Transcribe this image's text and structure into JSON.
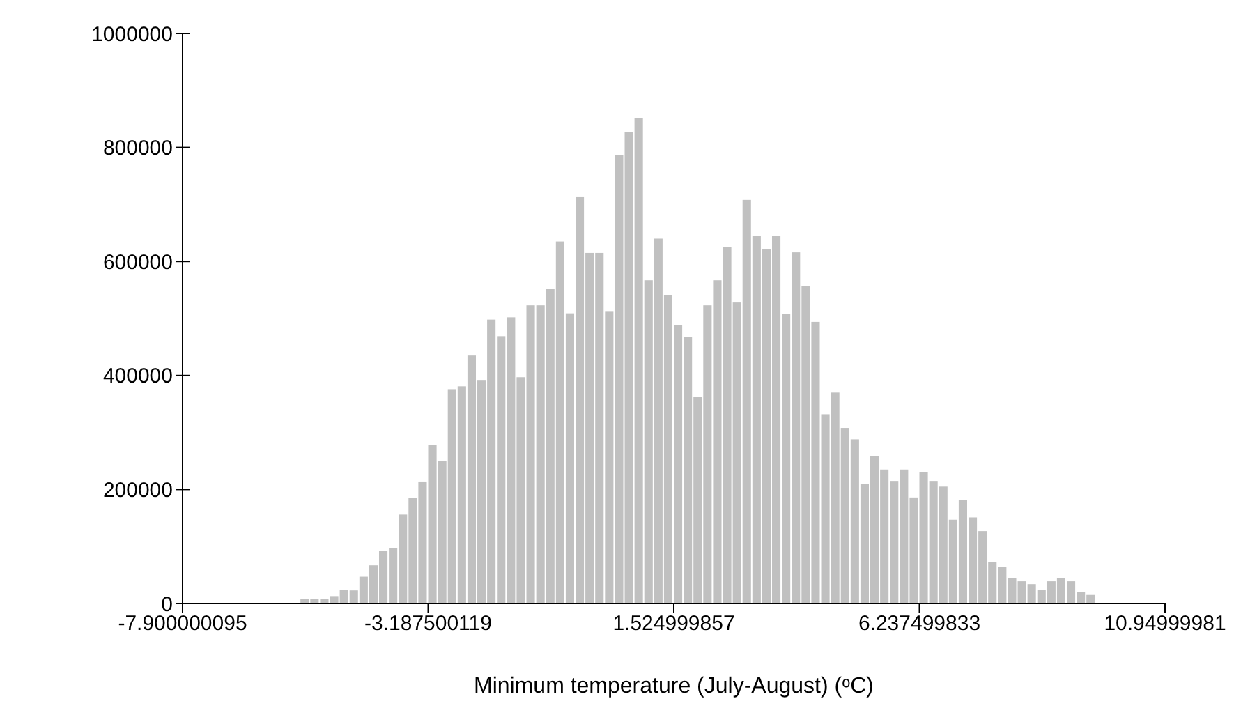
{
  "chart_data": {
    "type": "histogram",
    "xlabel": "Minimum temperature (July-August) (ᵒC)",
    "color": "#c0c0c0",
    "bins": [
      -7.900000095,
      -7.7115,
      -7.523,
      -7.3345,
      -7.146,
      -6.9575,
      -6.769,
      -6.5805,
      -6.392,
      -6.2035,
      -6.015,
      -5.8265,
      -5.638,
      -5.4495,
      -5.261,
      -5.0725,
      -4.884,
      -4.6955,
      -4.507,
      -4.3185,
      -4.13,
      -3.9415,
      -3.753,
      -3.5645,
      -3.376,
      -3.1875,
      -2.999,
      -2.8105,
      -2.622,
      -2.4335,
      -2.245,
      -2.0565,
      -1.868,
      -1.6795,
      -1.491,
      -1.3025,
      -1.114,
      -0.9255,
      -0.737,
      -0.5485,
      -0.36,
      -0.1715,
      0.017,
      0.2055,
      0.394,
      0.5825,
      0.771,
      0.9595,
      1.148,
      1.3365,
      1.525,
      1.7135,
      1.902,
      2.0905,
      2.279,
      2.4675,
      2.656,
      2.8445,
      3.033,
      3.2215,
      3.41,
      3.5985,
      3.787,
      3.9755,
      4.164,
      4.3525,
      4.541,
      4.7295,
      4.918,
      5.1065,
      5.295,
      5.4835,
      5.672,
      5.8605,
      6.049,
      6.2375,
      6.426,
      6.6145,
      6.803,
      6.9915,
      7.18,
      7.3685,
      7.557,
      7.7455,
      7.934,
      8.1225,
      8.311,
      8.4995,
      8.688,
      8.8765,
      9.065,
      9.2535,
      9.442,
      9.6305,
      9.819,
      10.0075,
      10.196,
      10.3845,
      10.573,
      10.7615,
      10.94999981
    ],
    "values": [
      0,
      0,
      0,
      0,
      0,
      0,
      0,
      0,
      0,
      0,
      0,
      0,
      8000,
      8000,
      8000,
      13000,
      24000,
      23000,
      47000,
      67000,
      92000,
      97000,
      156000,
      185000,
      214000,
      278000,
      250000,
      376000,
      381000,
      435000,
      391000,
      498000,
      469000,
      502000,
      397000,
      523000,
      523000,
      552000,
      635000,
      509000,
      714000,
      615000,
      615000,
      513000,
      787000,
      827000,
      851000,
      567000,
      640000,
      541000,
      489000,
      468000,
      362000,
      523000,
      567000,
      625000,
      528000,
      708000,
      645000,
      621000,
      645000,
      508000,
      616000,
      557000,
      494000,
      332000,
      370000,
      308000,
      288000,
      210000,
      259000,
      235000,
      215000,
      235000,
      186000,
      230000,
      215000,
      205000,
      147000,
      181000,
      151000,
      127000,
      73000,
      64000,
      44000,
      39000,
      34000,
      24000,
      39000,
      44000,
      39000,
      20000,
      15000,
      0,
      0,
      0,
      0,
      0,
      0,
      0
    ],
    "xlim": [
      -7.900000095,
      10.94999981
    ],
    "xticks": [
      -7.900000095,
      -3.187500119,
      1.524999857,
      6.237499833,
      10.94999981
    ],
    "ylim": [
      0,
      1000000
    ],
    "yticks": [
      0,
      200000,
      400000,
      600000,
      800000,
      1000000
    ],
    "grid": false
  }
}
